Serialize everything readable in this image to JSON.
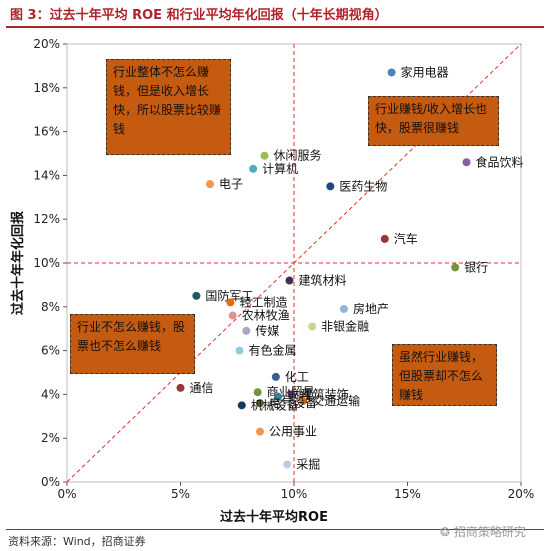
{
  "figure": {
    "title": "图 3：过去十年平均 ROE 和行业平均年化回报（十年长期视角）",
    "source": "资料来源：Wind，招商证券",
    "watermark": "招商策略研究"
  },
  "chart_data": {
    "type": "scatter",
    "xlabel": "过去十年平均ROE",
    "ylabel": "过去十年年化回报",
    "xlim": [
      0,
      20
    ],
    "ylim": [
      0,
      20
    ],
    "x_ticks": [
      "0%",
      "5%",
      "10%",
      "15%",
      "20%"
    ],
    "y_ticks": [
      "0%",
      "2%",
      "4%",
      "6%",
      "8%",
      "10%",
      "12%",
      "14%",
      "16%",
      "18%",
      "20%"
    ],
    "reference_lines": {
      "x": 10,
      "y": 10,
      "diagonal": true
    },
    "points": [
      {
        "label": "家用电器",
        "x": 14.3,
        "y": 18.7,
        "color": "#4f81bd"
      },
      {
        "label": "休闲服务",
        "x": 8.7,
        "y": 14.9,
        "color": "#9bbb59"
      },
      {
        "label": "食品饮料",
        "x": 17.6,
        "y": 14.6,
        "color": "#8064a2"
      },
      {
        "label": "计算机",
        "x": 8.2,
        "y": 14.3,
        "color": "#4bacc6"
      },
      {
        "label": "电子",
        "x": 6.3,
        "y": 13.6,
        "color": "#f79646"
      },
      {
        "label": "医药生物",
        "x": 11.6,
        "y": 13.5,
        "color": "#1f497d"
      },
      {
        "label": "汽车",
        "x": 14.0,
        "y": 11.1,
        "color": "#943634"
      },
      {
        "label": "银行",
        "x": 17.1,
        "y": 9.8,
        "color": "#77933c"
      },
      {
        "label": "建筑材料",
        "x": 9.8,
        "y": 9.2,
        "color": "#403151"
      },
      {
        "label": "国防军工",
        "x": 5.7,
        "y": 8.5,
        "color": "#215868"
      },
      {
        "label": "轻工制造",
        "x": 7.2,
        "y": 8.2,
        "color": "#e36c09"
      },
      {
        "label": "房地产",
        "x": 12.2,
        "y": 7.9,
        "color": "#95b3d7"
      },
      {
        "label": "农林牧渔",
        "x": 7.3,
        "y": 7.6,
        "color": "#d99694"
      },
      {
        "label": "非银金融",
        "x": 10.8,
        "y": 7.1,
        "color": "#c3d69b"
      },
      {
        "label": "传媒",
        "x": 7.9,
        "y": 6.9,
        "color": "#b2a2c7"
      },
      {
        "label": "有色金属",
        "x": 7.6,
        "y": 6.0,
        "color": "#93cddd"
      },
      {
        "label": "化工",
        "x": 9.2,
        "y": 4.8,
        "color": "#366092"
      },
      {
        "label": "通信",
        "x": 5.0,
        "y": 4.3,
        "color": "#953735"
      },
      {
        "label": "商业贸易",
        "x": 8.4,
        "y": 4.1,
        "color": "#76923c"
      },
      {
        "label": "建筑装饰",
        "x": 9.9,
        "y": 4.0,
        "color": "#5f497a"
      },
      {
        "label": "钢铁",
        "x": 9.3,
        "y": 3.9,
        "color": "#31859c"
      },
      {
        "label": "交通运输",
        "x": 10.4,
        "y": 3.7,
        "color": "#e46c0a"
      },
      {
        "label": "电气设备",
        "x": 8.5,
        "y": 3.6,
        "color": "#4f6228"
      },
      {
        "label": "机械设备",
        "x": 7.7,
        "y": 3.5,
        "color": "#17375e"
      },
      {
        "label": "公用事业",
        "x": 8.5,
        "y": 2.3,
        "color": "#f79646"
      },
      {
        "label": "采掘",
        "x": 9.7,
        "y": 0.8,
        "color": "#b9cde5"
      }
    ],
    "annotations": [
      {
        "key": "top_left",
        "text": "行业整体不怎么赚钱，但是收入增长快，所以股票比较赚钱"
      },
      {
        "key": "top_right",
        "text": "行业赚钱/收入增长也快，股票很赚钱"
      },
      {
        "key": "bottom_left",
        "text": "行业不怎么赚钱，股票也不怎么赚钱"
      },
      {
        "key": "bottom_right",
        "text": "虽然行业赚钱，但股票却不怎么赚钱"
      }
    ]
  }
}
